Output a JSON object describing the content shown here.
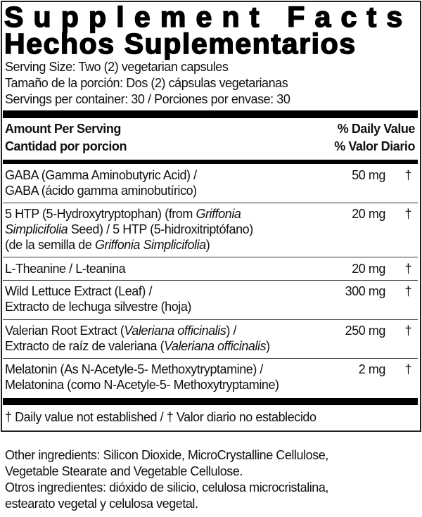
{
  "title_en": "Supplement Facts",
  "title_es": "Hechos Suplementarios",
  "serving": [
    "Serving Size: Two (2) vegetarian capsules",
    "Tamaño de la porción: Dos (2) cápsulas vegetarianas",
    "Servings per container: 30 / Porciones por envase: 30"
  ],
  "header": {
    "amount_en": "Amount Per Serving",
    "amount_es": "Cantidad por porcion",
    "dv_en": "% Daily Value",
    "dv_es": "% Valor Diario"
  },
  "ingredients": [
    {
      "line1": "GABA (Gamma Aminobutyric Acid) /",
      "line2": "GABA (ácido gamma aminobutírico)",
      "amount": "50 mg",
      "dv": "†"
    },
    {
      "line1a": "5 HTP (5-Hydroxytryptophan) (from ",
      "line1b": "Griffonia",
      "line2a": "Simplicifolia",
      "line2b": " Seed) / 5 HTP (5-hidroxitriptófano)",
      "line3a": "(de la semilla de ",
      "line3b": "Griffonia Simplicifolia",
      "line3c": ")",
      "amount": "20 mg",
      "dv": "†"
    },
    {
      "line1": "L-Theanine / L-teanina",
      "amount": "20 mg",
      "dv": "†"
    },
    {
      "line1": "Wild Lettuce Extract (Leaf) /",
      "line2": "Extracto de lechuga silvestre (hoja)",
      "amount": "300 mg",
      "dv": "†"
    },
    {
      "line1a": "Valerian Root Extract (",
      "line1b": "Valeriana officinalis",
      "line1c": ") /",
      "line2a": "Extracto de raíz de valeriana (",
      "line2b": "Valeriana officinalis",
      "line2c": ")",
      "amount": "250 mg",
      "dv": "†"
    },
    {
      "line1": "Melatonin (As N-Acetyle-5- Methoxytryptamine) /",
      "line2": "Melatonina (como N-Acetyle-5- Methoxytryptamine)",
      "amount": "2 mg",
      "dv": "†"
    }
  ],
  "footnote": "† Daily value not established  / † Valor diario no establecido",
  "other": [
    "Other ingredients: Silicon Dioxide, MicroCrystalline Cellulose,",
    "Vegetable Stearate and Vegetable Cellulose.",
    "Otros ingredientes: dióxido de silicio, celulosa microcristalina,",
    "estearato vegetal y celulosa vegetal."
  ]
}
